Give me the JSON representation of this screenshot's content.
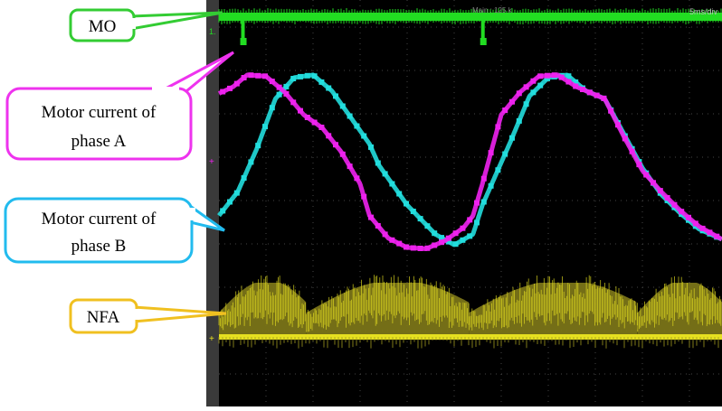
{
  "chart_data": {
    "type": "line",
    "title": "",
    "xlabel": "",
    "ylabel": "",
    "screen_readouts": {
      "top_center": "Main : 125 k",
      "top_right": "5ms/div"
    },
    "grid": true,
    "x_unit": "ms",
    "x_range_ms": [
      0,
      50
    ],
    "y_range_div": [
      -4,
      4
    ],
    "series": [
      {
        "name": "MO",
        "color": "#22dd22",
        "description_values": "Digital level high; short low pulses once per electrical period",
        "pulse_times_ms": [
          1.3,
          26.8
        ]
      },
      {
        "name": "Motor current of phase A",
        "color": "#ee22ee",
        "x": [
          0,
          1.5,
          3,
          5,
          7,
          9,
          11,
          13,
          15,
          16,
          18,
          20,
          22,
          24,
          26,
          27,
          28,
          30,
          32,
          34,
          36,
          38,
          40,
          41,
          43,
          45,
          47,
          49,
          51,
          53.5
        ],
        "y": [
          2.5,
          2.75,
          3.2,
          3.15,
          2.55,
          1.7,
          1.2,
          0.3,
          -0.9,
          -2.1,
          -2.95,
          -3.3,
          -3.35,
          -3.05,
          -2.55,
          -2.1,
          -0.9,
          1.7,
          2.55,
          3.15,
          3.2,
          2.75,
          2.45,
          2.3,
          0.9,
          -0.4,
          -1.2,
          -1.9,
          -2.5,
          -3.0
        ]
      },
      {
        "name": "Motor current of phase B",
        "color": "#22dddd",
        "x": [
          0,
          2,
          4,
          6,
          8,
          10,
          12,
          14,
          16,
          17,
          20,
          23,
          25,
          27,
          28,
          31,
          33,
          35,
          37,
          39,
          41,
          43,
          45,
          47,
          49,
          51,
          53.5
        ],
        "y": [
          -2.1,
          -1.2,
          0.4,
          2.3,
          3.1,
          3.2,
          2.6,
          1.6,
          0.6,
          -0.2,
          -1.7,
          -2.8,
          -3.2,
          -2.8,
          -1.7,
          0.7,
          2.4,
          3.1,
          3.2,
          2.6,
          2.3,
          1.0,
          -0.3,
          -1.3,
          -2.0,
          -2.6,
          -3.0
        ]
      },
      {
        "name": "NFA",
        "color": "#e6e020",
        "description_values": "Noisy yellow envelope (humps) above a flat baseline; humps reset near phase-A sector changes",
        "hump_segments_ms": [
          [
            0,
            9.3
          ],
          [
            9.3,
            26.6
          ],
          [
            26.6,
            44.5
          ],
          [
            44.5,
            53.5
          ]
        ],
        "hump_peak_div": 1.7,
        "baseline_div": 0
      }
    ]
  },
  "callouts": [
    {
      "label": "MO",
      "color": "#33cc33"
    },
    {
      "label_line1": "Motor current of",
      "label_line2": "phase A",
      "color": "#ee33ee"
    },
    {
      "label_line1": "Motor current of",
      "label_line2": "phase B",
      "color": "#22bbee"
    },
    {
      "label": "NFA",
      "color": "#f0c020"
    }
  ]
}
